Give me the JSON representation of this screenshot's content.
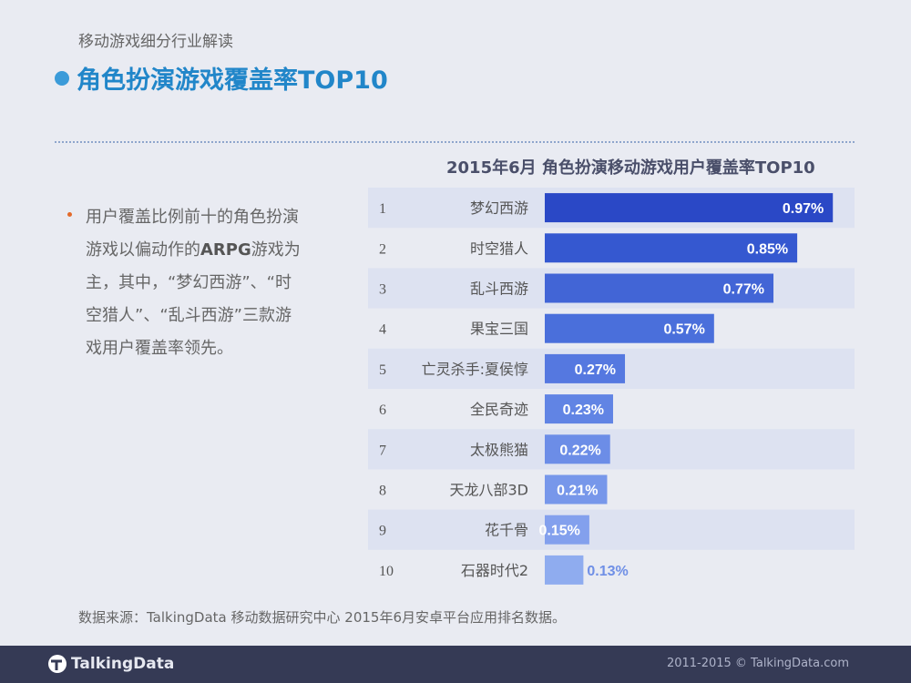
{
  "header": {
    "subtitle": "移动游戏细分行业解读",
    "title": "角色扮演游戏覆盖率TOP10"
  },
  "bullet": {
    "text_before": "用户覆盖比例前十的角色扮演游戏以偏动作的",
    "highlight": "ARPG",
    "text_after": "游戏为主，其中，“梦幻西游”、“时空猎人”、“乱斗西游”三款游戏用户覆盖率领先。"
  },
  "chart_data": {
    "type": "bar",
    "orientation": "horizontal",
    "title": "2015年6月 角色扮演移动游戏用户覆盖率TOP10",
    "ranks": [
      "1",
      "2",
      "3",
      "4",
      "5",
      "6",
      "7",
      "8",
      "9",
      "10"
    ],
    "categories": [
      "梦幻西游",
      "时空猎人",
      "乱斗西游",
      "果宝三国",
      "亡灵杀手:夏侯惇",
      "全民奇迹",
      "太极熊猫",
      "天龙八部3D",
      "花千骨",
      "石器时代2"
    ],
    "values": [
      0.97,
      0.85,
      0.77,
      0.57,
      0.27,
      0.23,
      0.22,
      0.21,
      0.15,
      0.13
    ],
    "value_labels": [
      "0.97%",
      "0.85%",
      "0.77%",
      "0.57%",
      "0.27%",
      "0.23%",
      "0.22%",
      "0.21%",
      "0.15%",
      "0.13%"
    ],
    "unit": "%",
    "bar_colors": [
      "#2a48c6",
      "#3558d0",
      "#4265d6",
      "#4a6fdb",
      "#5578e0",
      "#6184e4",
      "#6c8de7",
      "#7797ea",
      "#83a0ed",
      "#8facef"
    ],
    "label_colors": [
      "#ffffff",
      "#ffffff",
      "#ffffff",
      "#ffffff",
      "#ffffff",
      "#ffffff",
      "#ffffff",
      "#ffffff",
      "#ffffff",
      "#6f8fe6"
    ],
    "band_color": "#dde2f1"
  },
  "source": "数据来源：TalkingData 移动数据研究中心 2015年6月安卓平台应用排名数据。",
  "footer": {
    "logo": "TalkingData",
    "copyright": "2011-2015 © TalkingData.com"
  }
}
